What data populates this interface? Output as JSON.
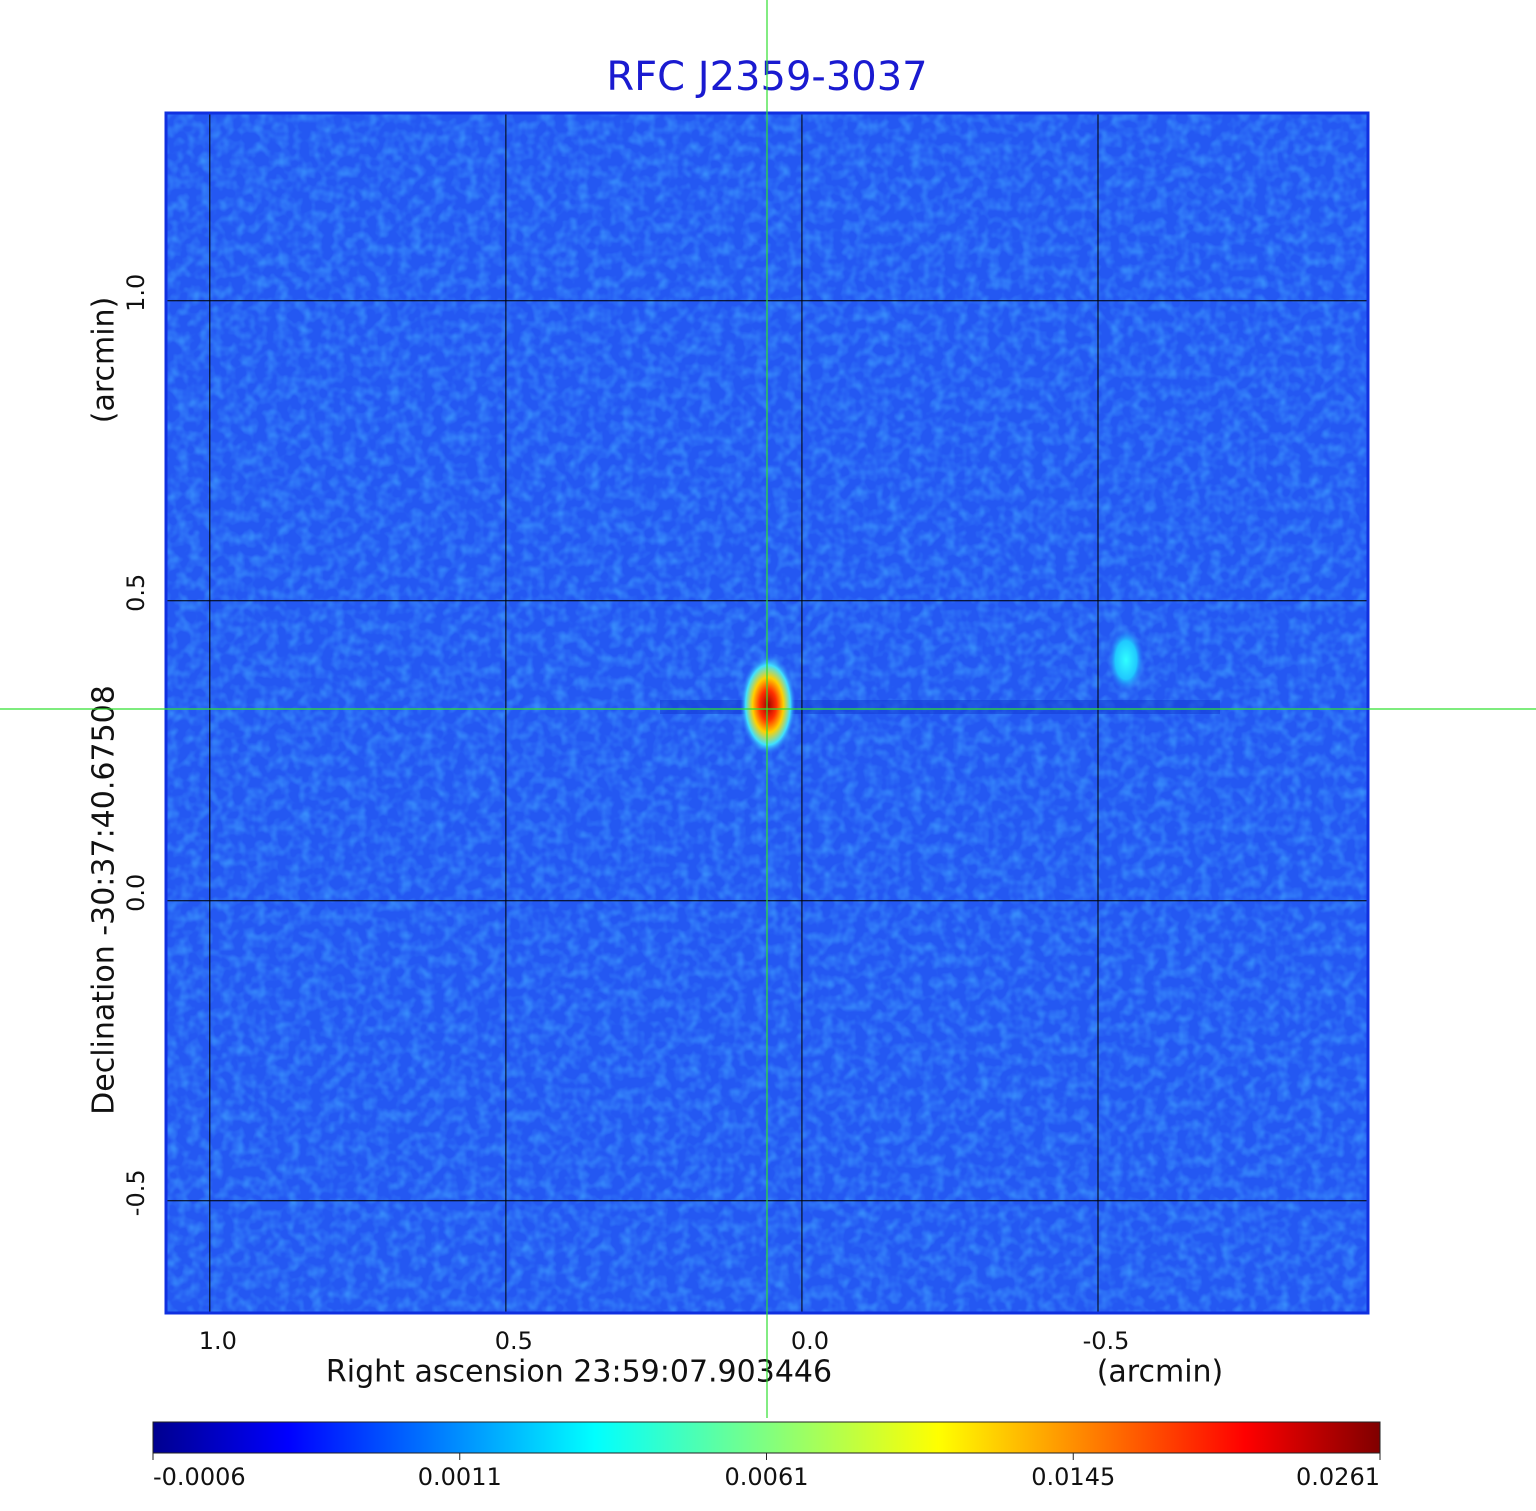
{
  "chart_data": {
    "type": "image",
    "title": "RFC J2359-3037",
    "x_label": "Right ascension  23:59:07.903446",
    "x_unit": "(arcmin)",
    "y_label": "Declination  -30:37:40.67508",
    "y_unit": "(arcmin)",
    "xlim": [
      1.074,
      -0.956
    ],
    "ylim": [
      -0.687,
      1.313
    ],
    "xticks": [
      {
        "value": 1,
        "label": "1.0"
      },
      0.5,
      {
        "value": 0,
        "label": "0.0"
      },
      -0.5
    ],
    "yticks": [
      {
        "value": 1,
        "label": "1.0"
      },
      0.5,
      {
        "value": 0,
        "label": "0.0"
      },
      -0.5
    ],
    "grid": true,
    "colormap": "jet",
    "colorbar_ticks": [
      -0.0006,
      0.0011,
      0.0061,
      0.0145,
      0.0261
    ]
  }
}
